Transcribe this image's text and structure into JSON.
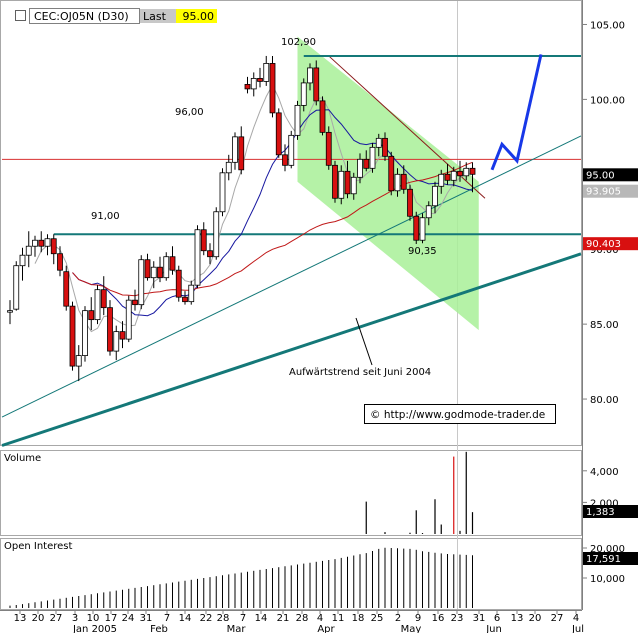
{
  "header": {
    "symbol": "CEC:OJ05N (D30)",
    "last_label": "Last",
    "last_value": "95.00"
  },
  "colors": {
    "frame": "#a8a8a8",
    "price_candle": "#d81010",
    "channel_fill": "#a8f098",
    "channel_line": "#8a1a1a",
    "teal_level": "#147878",
    "red_level": "#d83030",
    "ma_short": "#a8a8a8",
    "ma_mid": "#1818a0",
    "ma_long": "#c01818",
    "projection": "#1838e8",
    "last_box": "#ffff00",
    "volume_up": "#000000",
    "volume_down": "#d81010"
  },
  "chart_data": [
    {
      "type": "candlestick",
      "panel": "price",
      "title": "CEC:OJ05N (D30)",
      "y_ticks": [
        "105.00",
        "100.00",
        "95.00",
        "90.00",
        "85.00",
        "80.00"
      ],
      "ylim": [
        77,
        106.5
      ],
      "grid": false,
      "price_tags": [
        {
          "value": "95.00",
          "style": "black"
        },
        {
          "value": "93.905",
          "style": "gray"
        },
        {
          "value": "90.403",
          "style": "red"
        }
      ],
      "annotations": [
        "102,90",
        "96,00",
        "91,00",
        "90,35",
        "Aufwärtstrend seit Juni 2004",
        "© http://www.godmode-trader.de"
      ],
      "levels": [
        {
          "value": 102.9,
          "style": "teal"
        },
        {
          "value": 96.0,
          "style": "red"
        },
        {
          "value": 91.0,
          "style": "teal"
        }
      ],
      "x_tick_labels": [
        "13",
        "20",
        "27",
        "3",
        "10",
        "17",
        "24",
        "31",
        "7",
        "14",
        "22",
        "28",
        "7",
        "14",
        "21",
        "28",
        "4",
        "11",
        "18",
        "25",
        "2",
        "9",
        "16",
        "23",
        "31",
        "6",
        "13",
        "20",
        "27",
        "4"
      ],
      "month_labels": [
        "Jan 2005",
        "Feb",
        "Mar",
        "Apr",
        "May",
        "Jun",
        "Jul"
      ],
      "candles": [
        {
          "o": 85.8,
          "h": 86.6,
          "l": 85.0,
          "c": 85.9
        },
        {
          "o": 86.0,
          "h": 89.2,
          "l": 85.9,
          "c": 88.9
        },
        {
          "o": 88.9,
          "h": 90.1,
          "l": 87.9,
          "c": 89.6
        },
        {
          "o": 89.6,
          "h": 91.2,
          "l": 88.8,
          "c": 90.2
        },
        {
          "o": 90.2,
          "h": 90.9,
          "l": 89.5,
          "c": 90.6
        },
        {
          "o": 90.6,
          "h": 91.2,
          "l": 89.8,
          "c": 90.2
        },
        {
          "o": 90.2,
          "h": 91.0,
          "l": 89.6,
          "c": 90.7
        },
        {
          "o": 90.7,
          "h": 91.0,
          "l": 89.0,
          "c": 89.7
        },
        {
          "o": 89.7,
          "h": 90.2,
          "l": 88.2,
          "c": 88.6
        },
        {
          "o": 88.5,
          "h": 88.9,
          "l": 85.9,
          "c": 86.2
        },
        {
          "o": 86.2,
          "h": 86.5,
          "l": 81.9,
          "c": 82.2
        },
        {
          "o": 82.2,
          "h": 83.6,
          "l": 81.2,
          "c": 82.9
        },
        {
          "o": 82.9,
          "h": 86.2,
          "l": 82.5,
          "c": 85.9
        },
        {
          "o": 85.9,
          "h": 86.8,
          "l": 84.6,
          "c": 85.3
        },
        {
          "o": 85.3,
          "h": 87.6,
          "l": 85.0,
          "c": 87.3
        },
        {
          "o": 87.3,
          "h": 88.2,
          "l": 85.6,
          "c": 86.1
        },
        {
          "o": 86.1,
          "h": 86.6,
          "l": 82.9,
          "c": 83.2
        },
        {
          "o": 83.2,
          "h": 84.9,
          "l": 82.6,
          "c": 84.5
        },
        {
          "o": 84.5,
          "h": 85.2,
          "l": 83.4,
          "c": 84.0
        },
        {
          "o": 84.0,
          "h": 86.9,
          "l": 83.8,
          "c": 86.6
        },
        {
          "o": 86.6,
          "h": 87.3,
          "l": 85.9,
          "c": 86.3
        },
        {
          "o": 86.3,
          "h": 89.6,
          "l": 86.0,
          "c": 89.3
        },
        {
          "o": 89.3,
          "h": 89.7,
          "l": 87.9,
          "c": 88.1
        },
        {
          "o": 88.1,
          "h": 89.2,
          "l": 87.4,
          "c": 88.8
        },
        {
          "o": 88.8,
          "h": 89.5,
          "l": 87.8,
          "c": 88.1
        },
        {
          "o": 88.1,
          "h": 89.8,
          "l": 87.9,
          "c": 89.5
        },
        {
          "o": 89.5,
          "h": 90.2,
          "l": 88.3,
          "c": 88.6
        },
        {
          "o": 88.6,
          "h": 88.9,
          "l": 86.5,
          "c": 86.8
        },
        {
          "o": 86.8,
          "h": 87.2,
          "l": 86.3,
          "c": 86.5
        },
        {
          "o": 86.5,
          "h": 87.9,
          "l": 86.3,
          "c": 87.6
        },
        {
          "o": 87.6,
          "h": 91.6,
          "l": 87.4,
          "c": 91.3
        },
        {
          "o": 91.3,
          "h": 91.8,
          "l": 89.6,
          "c": 89.9
        },
        {
          "o": 89.9,
          "h": 90.4,
          "l": 89.0,
          "c": 89.5
        },
        {
          "o": 89.5,
          "h": 92.8,
          "l": 89.3,
          "c": 92.5
        },
        {
          "o": 92.5,
          "h": 95.4,
          "l": 92.2,
          "c": 95.1
        },
        {
          "o": 95.1,
          "h": 96.3,
          "l": 94.6,
          "c": 95.8
        },
        {
          "o": 95.8,
          "h": 97.8,
          "l": 95.3,
          "c": 97.5
        },
        {
          "o": 97.5,
          "h": 98.2,
          "l": 95.0,
          "c": 95.3
        },
        {
          "o": 101.0,
          "h": 101.5,
          "l": 100.4,
          "c": 100.7
        },
        {
          "o": 100.7,
          "h": 101.8,
          "l": 100.2,
          "c": 101.4
        },
        {
          "o": 101.4,
          "h": 102.1,
          "l": 100.8,
          "c": 101.2
        },
        {
          "o": 101.2,
          "h": 102.9,
          "l": 100.9,
          "c": 102.4
        },
        {
          "o": 102.4,
          "h": 102.9,
          "l": 98.8,
          "c": 99.1
        },
        {
          "o": 99.1,
          "h": 99.4,
          "l": 96.1,
          "c": 96.3
        },
        {
          "o": 96.3,
          "h": 97.0,
          "l": 95.2,
          "c": 95.6
        },
        {
          "o": 95.6,
          "h": 97.9,
          "l": 95.4,
          "c": 97.6
        },
        {
          "o": 97.6,
          "h": 99.9,
          "l": 97.3,
          "c": 99.6
        },
        {
          "o": 99.6,
          "h": 101.4,
          "l": 99.2,
          "c": 101.1
        },
        {
          "o": 101.1,
          "h": 102.4,
          "l": 100.6,
          "c": 102.1
        },
        {
          "o": 102.1,
          "h": 102.6,
          "l": 99.6,
          "c": 99.9
        },
        {
          "o": 99.9,
          "h": 100.2,
          "l": 97.6,
          "c": 97.8
        },
        {
          "o": 97.8,
          "h": 98.2,
          "l": 95.3,
          "c": 95.6
        },
        {
          "o": 95.6,
          "h": 95.9,
          "l": 93.1,
          "c": 93.4
        },
        {
          "o": 93.4,
          "h": 95.6,
          "l": 93.0,
          "c": 95.2
        },
        {
          "o": 95.2,
          "h": 95.9,
          "l": 93.4,
          "c": 93.7
        },
        {
          "o": 93.7,
          "h": 95.1,
          "l": 93.3,
          "c": 94.8
        },
        {
          "o": 94.8,
          "h": 96.4,
          "l": 94.4,
          "c": 96.0
        },
        {
          "o": 96.0,
          "h": 96.6,
          "l": 95.2,
          "c": 95.4
        },
        {
          "o": 95.4,
          "h": 97.1,
          "l": 95.1,
          "c": 96.8
        },
        {
          "o": 96.8,
          "h": 97.7,
          "l": 96.2,
          "c": 97.4
        },
        {
          "o": 97.4,
          "h": 97.8,
          "l": 95.9,
          "c": 96.2
        },
        {
          "o": 96.2,
          "h": 96.5,
          "l": 93.6,
          "c": 93.9
        },
        {
          "o": 93.9,
          "h": 95.4,
          "l": 93.5,
          "c": 95.0
        },
        {
          "o": 95.0,
          "h": 95.6,
          "l": 93.7,
          "c": 94.0
        },
        {
          "o": 94.0,
          "h": 94.3,
          "l": 91.9,
          "c": 92.2
        },
        {
          "o": 92.2,
          "h": 92.5,
          "l": 90.35,
          "c": 90.6
        },
        {
          "o": 90.6,
          "h": 92.4,
          "l": 90.4,
          "c": 92.1
        },
        {
          "o": 92.1,
          "h": 93.2,
          "l": 91.6,
          "c": 92.9
        },
        {
          "o": 92.9,
          "h": 94.5,
          "l": 92.4,
          "c": 94.2
        },
        {
          "o": 94.2,
          "h": 95.3,
          "l": 93.7,
          "c": 95.0
        },
        {
          "o": 95.0,
          "h": 95.7,
          "l": 94.3,
          "c": 94.6
        },
        {
          "o": 94.6,
          "h": 95.5,
          "l": 94.2,
          "c": 95.2
        },
        {
          "o": 95.2,
          "h": 95.9,
          "l": 94.5,
          "c": 94.9
        },
        {
          "o": 94.9,
          "h": 95.8,
          "l": 94.6,
          "c": 95.4
        },
        {
          "o": 95.4,
          "h": 95.8,
          "l": 93.8,
          "c": 95.0
        }
      ]
    },
    {
      "type": "bar",
      "panel": "volume",
      "title": "Volume",
      "y_ticks": [
        "4,000",
        "2,000"
      ],
      "last_value_tag": "1,383",
      "ylim": [
        0,
        5000
      ],
      "values": [
        0,
        0,
        0,
        0,
        0,
        0,
        0,
        0,
        0,
        0,
        0,
        0,
        0,
        0,
        0,
        0,
        0,
        0,
        0,
        0,
        0,
        0,
        0,
        0,
        0,
        0,
        0,
        0,
        0,
        0,
        0,
        0,
        0,
        0,
        0,
        0,
        0,
        0,
        0,
        0,
        0,
        0,
        0,
        0,
        0,
        0,
        0,
        0,
        0,
        0,
        0,
        0,
        0,
        0,
        0,
        0,
        0,
        2050,
        0,
        0,
        120,
        0,
        0,
        0,
        80,
        1500,
        60,
        0,
        2200,
        600,
        0,
        4900,
        200,
        5200,
        1383
      ],
      "down_days": [
        71
      ]
    },
    {
      "type": "bar",
      "panel": "open_interest",
      "title": "Open Interest",
      "y_ticks": [
        "20,000",
        "10,000"
      ],
      "last_value_tag": "17,591",
      "ylim": [
        0,
        22000
      ],
      "values": [
        800,
        1000,
        1300,
        1600,
        1900,
        2200,
        2500,
        2800,
        3100,
        3400,
        3700,
        4000,
        4300,
        4600,
        4900,
        5200,
        5500,
        5800,
        6100,
        6400,
        6700,
        7000,
        7300,
        7600,
        7900,
        8200,
        8500,
        8800,
        9100,
        9400,
        9700,
        10000,
        10300,
        10600,
        10900,
        11200,
        11500,
        11800,
        12100,
        12400,
        12700,
        13000,
        13300,
        13600,
        13900,
        14200,
        14500,
        14800,
        15100,
        15400,
        15700,
        16000,
        16300,
        16700,
        17100,
        17500,
        17900,
        18300,
        19000,
        19700,
        20100,
        20000,
        19900,
        19800,
        19700,
        19400,
        18900,
        18700,
        18400,
        18200,
        18000,
        17900,
        17800,
        17700,
        17591
      ]
    }
  ]
}
